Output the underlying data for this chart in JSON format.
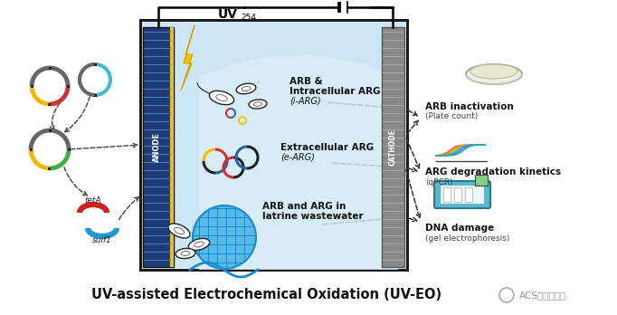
{
  "title": "UV-assisted Electrochemical Oxidation (UV-EO)",
  "title_fontsize": 10.5,
  "bg_color": "#ffffff",
  "label_arb_iarg_1": "ARB &",
  "label_arb_iarg_2": "Intracellular ARG",
  "label_arb_iarg_3": "(i-ARG)",
  "label_earg_1": "Extracellular ARG",
  "label_earg_2": "(e-ARG)",
  "label_latrine_1": "ARB and ARG in",
  "label_latrine_2": "latrine wastewater",
  "label_arb_inact": "ARB inactivation",
  "label_arb_inact_sub": "(Plate count)",
  "label_arg_deg": "ARG degradation kinetics",
  "label_arg_deg_sub": "(qPCR)",
  "label_dna": "DNA damage",
  "label_dna_sub": "(gel electrophoresis)",
  "label_anode": "ANODE",
  "label_cathode": "CATHODE",
  "label_teta": "tetA",
  "label_sulf": "sulf1",
  "acs_label": "ACS美国化学会"
}
